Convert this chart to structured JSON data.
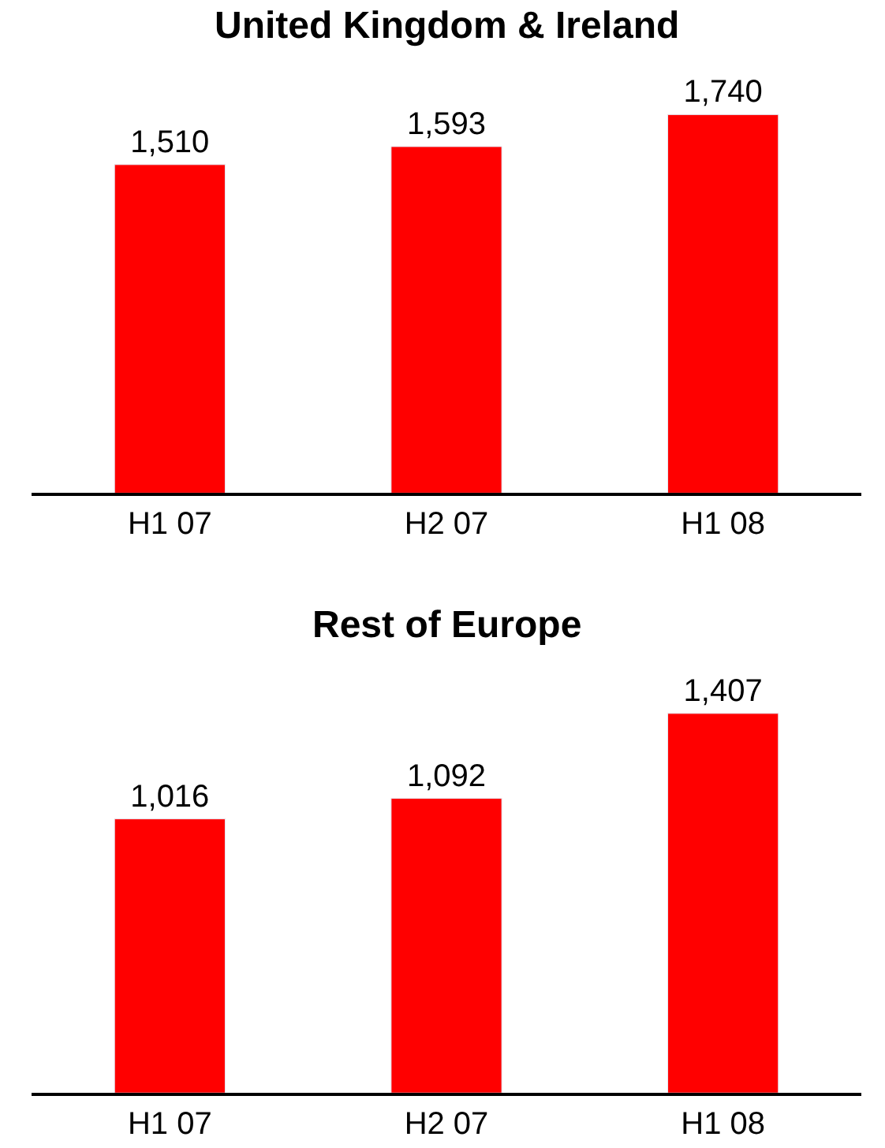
{
  "chart_data": [
    {
      "type": "bar",
      "title": "United Kingdom & Ireland",
      "categories": [
        "H1 07",
        "H2 07",
        "H1 08"
      ],
      "values": [
        1510,
        1593,
        1740
      ],
      "value_labels": [
        "1,510",
        "1,593",
        "1,740"
      ],
      "color": "#ff0000",
      "tick_labels": "x"
    },
    {
      "type": "bar",
      "title": "Rest of Europe",
      "categories": [
        "H1 07",
        "H2 07",
        "H1 08"
      ],
      "values": [
        1016,
        1092,
        1407
      ],
      "value_labels": [
        "1,016",
        "1,092",
        "1,407"
      ],
      "color": "#ff0000",
      "tick_labels": "x"
    }
  ]
}
